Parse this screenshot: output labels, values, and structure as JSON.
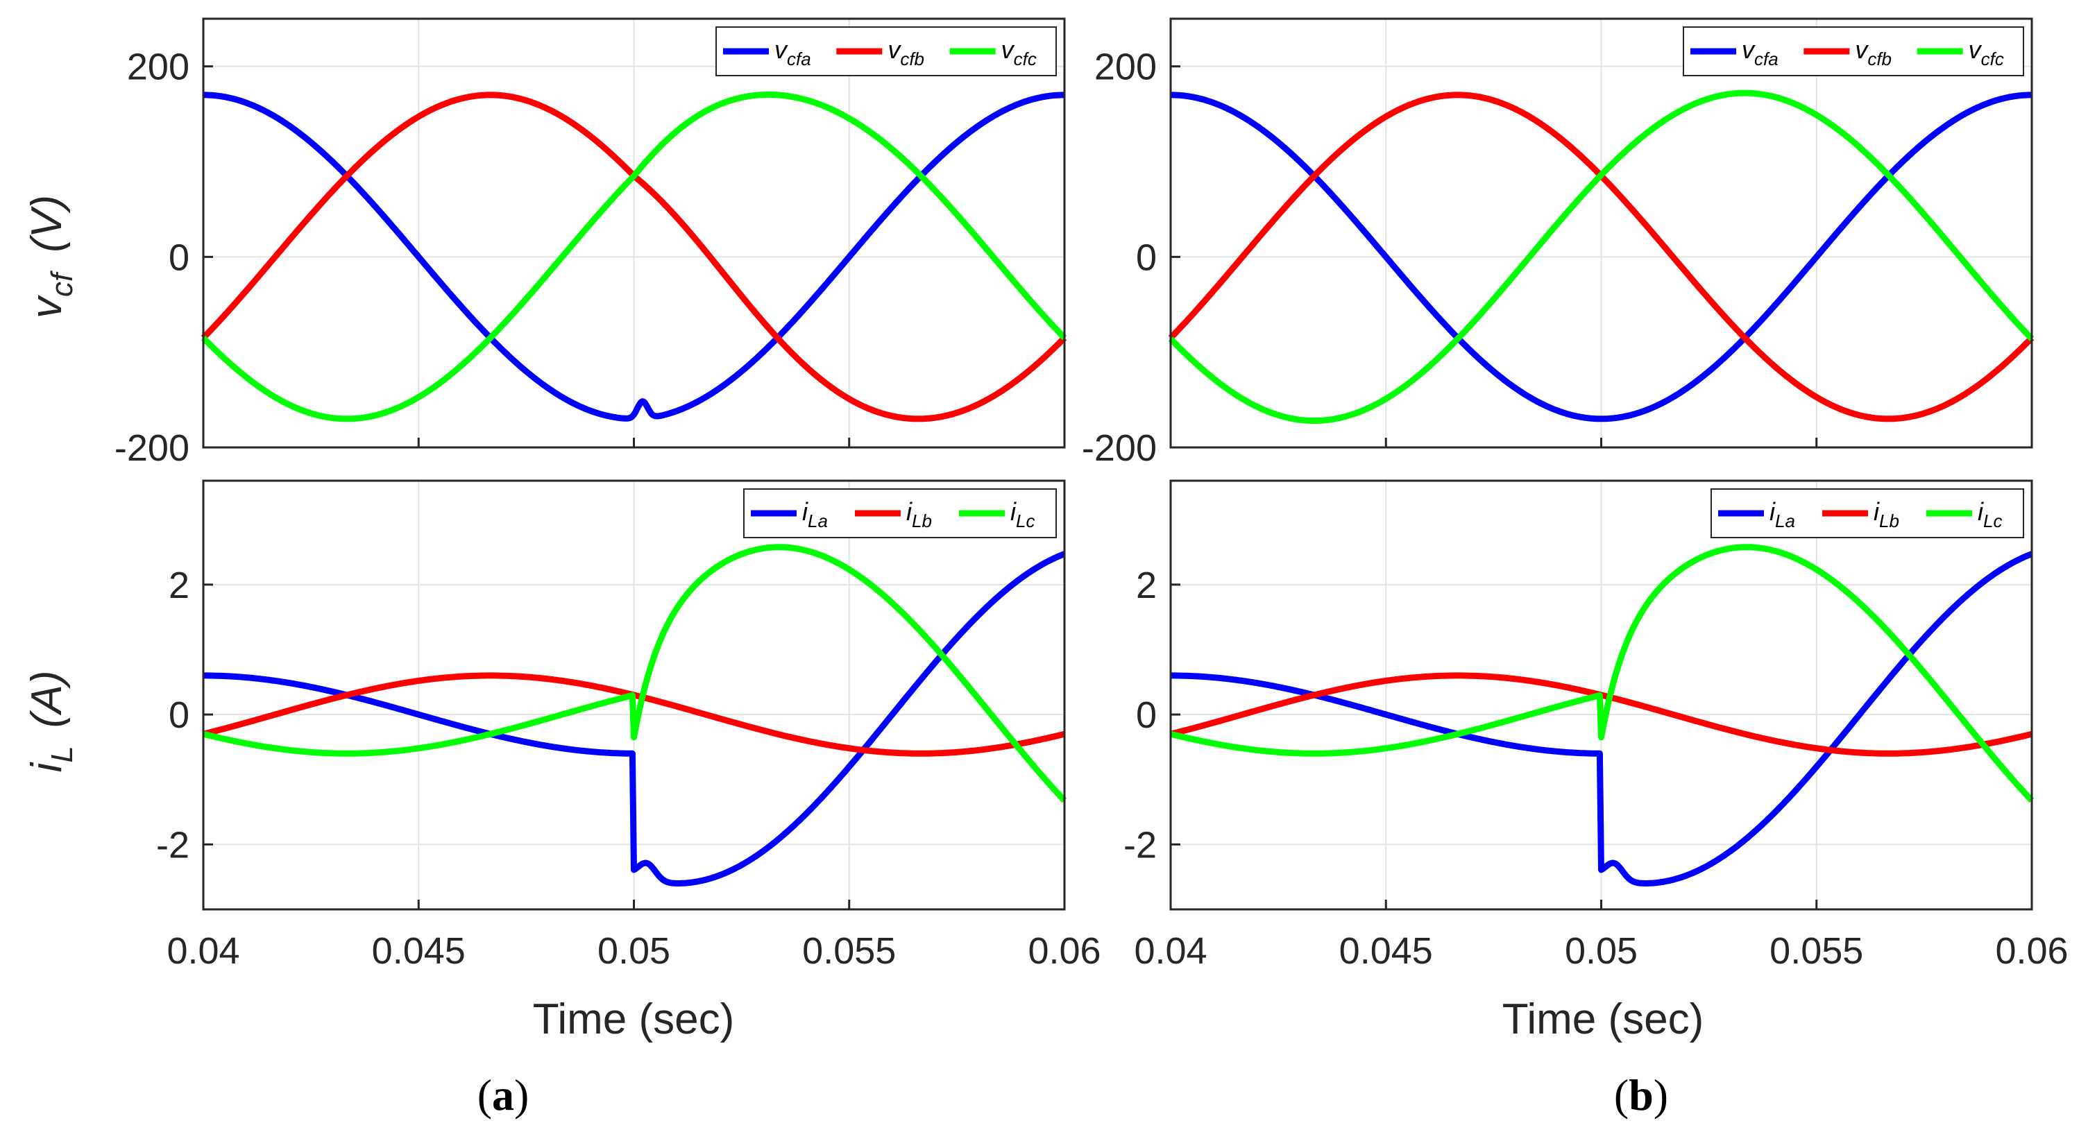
{
  "colors": {
    "a": "#0000ff",
    "b": "#ff0000",
    "c": "#00ff00"
  },
  "panels": [
    {
      "label_open": "(",
      "label_letter": "a",
      "label_close": ")"
    },
    {
      "label_open": "(",
      "label_letter": "b",
      "label_close": ")"
    }
  ],
  "xlabel": "Time (sec)",
  "chart_data": [
    {
      "type": "line",
      "panel": "a",
      "row": "top",
      "ylabel_main": "v",
      "ylabel_sub": "cf",
      "ylabel_unit": "(V)",
      "xlim": [
        0.04,
        0.06
      ],
      "ylim": [
        -200,
        250
      ],
      "xticks": [
        "0.04",
        "0.045",
        "0.05",
        "0.055",
        "0.06"
      ],
      "yticks": [
        200,
        0,
        -200
      ],
      "ytick_labels": [
        "200",
        "0",
        "-200"
      ],
      "grid": true,
      "legend": "top-right",
      "series": [
        {
          "name": "v",
          "sub": "cfa",
          "color_key": "a",
          "amplitude": 170,
          "phase_deg": 0,
          "disturbance": "dip_at_0.0502"
        },
        {
          "name": "v",
          "sub": "cfb",
          "color_key": "b",
          "amplitude": 170,
          "phase_deg": -120,
          "disturbance": "kink_at_0.05"
        },
        {
          "name": "v",
          "sub": "cfc",
          "color_key": "c",
          "amplitude": 170,
          "phase_deg": 120,
          "disturbance": "kink_at_0.05"
        }
      ]
    },
    {
      "type": "line",
      "panel": "a",
      "row": "bottom",
      "ylabel_main": "i",
      "ylabel_sub": "L",
      "ylabel_unit": "(A)",
      "xlim": [
        0.04,
        0.06
      ],
      "ylim": [
        -3,
        3.6
      ],
      "xticks": [
        "0.04",
        "0.045",
        "0.05",
        "0.055",
        "0.06"
      ],
      "yticks": [
        2,
        0,
        -2
      ],
      "ytick_labels": [
        "2",
        "0",
        "-2"
      ],
      "grid": true,
      "legend": "top-right",
      "series": [
        {
          "name": "i",
          "sub": "La",
          "color_key": "a",
          "pre_step_amplitude": 0.6,
          "post_step_amplitude": 2.6,
          "step_time": 0.05
        },
        {
          "name": "i",
          "sub": "Lb",
          "color_key": "b",
          "pre_step_amplitude": 0.6,
          "post_step_amplitude": 0.6,
          "step_time": 0.05
        },
        {
          "name": "i",
          "sub": "Lc",
          "color_key": "c",
          "pre_step_amplitude": 0.6,
          "post_step_amplitude": 2.6,
          "step_time": 0.05
        }
      ]
    },
    {
      "type": "line",
      "panel": "b",
      "row": "top",
      "xlim": [
        0.04,
        0.06
      ],
      "ylim": [
        -200,
        250
      ],
      "xticks": [
        "0.04",
        "0.045",
        "0.05",
        "0.055",
        "0.06"
      ],
      "yticks": [
        200,
        0,
        -200
      ],
      "ytick_labels": [
        "200",
        "0",
        "-200"
      ],
      "grid": true,
      "legend": "top-right",
      "series": [
        {
          "name": "v",
          "sub": "cfa",
          "color_key": "a",
          "amplitude": 170,
          "phase_deg": 0
        },
        {
          "name": "v",
          "sub": "cfb",
          "color_key": "b",
          "amplitude": 170,
          "phase_deg": -120
        },
        {
          "name": "v",
          "sub": "cfc",
          "color_key": "c",
          "amplitude": 172,
          "phase_deg": 120
        }
      ]
    },
    {
      "type": "line",
      "panel": "b",
      "row": "bottom",
      "xlim": [
        0.04,
        0.06
      ],
      "ylim": [
        -3,
        3.6
      ],
      "xticks": [
        "0.04",
        "0.045",
        "0.05",
        "0.055",
        "0.06"
      ],
      "yticks": [
        2,
        0,
        -2
      ],
      "ytick_labels": [
        "2",
        "0",
        "-2"
      ],
      "grid": true,
      "legend": "top-right",
      "series": [
        {
          "name": "i",
          "sub": "La",
          "color_key": "a",
          "pre_step_amplitude": 0.6,
          "post_step_amplitude": 2.6,
          "step_time": 0.05
        },
        {
          "name": "i",
          "sub": "Lb",
          "color_key": "b",
          "pre_step_amplitude": 0.6,
          "post_step_amplitude": 0.6,
          "step_time": 0.05
        },
        {
          "name": "i",
          "sub": "Lc",
          "color_key": "c",
          "pre_step_amplitude": 0.6,
          "post_step_amplitude": 2.6,
          "step_time": 0.05
        }
      ]
    }
  ]
}
